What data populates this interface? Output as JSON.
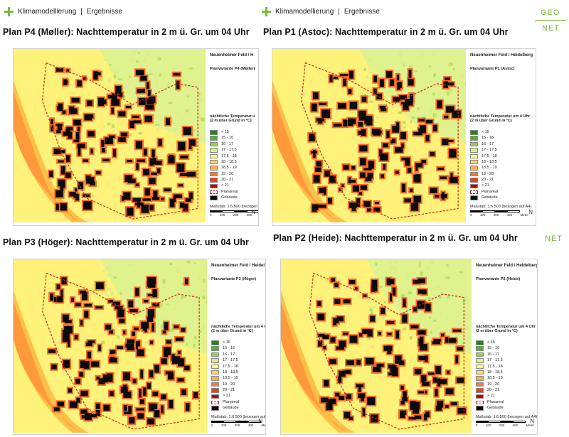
{
  "header": {
    "section": "Klimamodellierung",
    "separator": "|",
    "page": "Ergebnisse"
  },
  "logo": {
    "top": "GEO",
    "bottom": "NET",
    "fragment": "NET"
  },
  "legend_common": {
    "location": "Neuenheimer Feld / Heidelberg",
    "title": "nächtliche Temperatur um 4 Uhr",
    "subtitle": "(2 m über Grund in °C)",
    "classes": [
      "< 15",
      "15 - 16",
      "16 - 17",
      "17 - 17,5",
      "17,5 - 18",
      "18 - 18,5",
      "18,5 - 19",
      "19 - 20",
      "20 - 21",
      "> 21"
    ],
    "class_colors": [
      "#1b8a16",
      "#55b030",
      "#97d14a",
      "#d6ef8a",
      "#ffff70",
      "#ffd66a",
      "#ffb04a",
      "#ff7a30",
      "#f03c1c",
      "#c00000"
    ],
    "planareal": "Planareal",
    "gebaeude": "Gebäude",
    "scale": "Maßstab: 1:6.500",
    "scale_note": "(bezogen auf A4)",
    "scale_labels": [
      "0",
      "100",
      "200",
      "400"
    ],
    "unit": "Meter",
    "north": "N"
  },
  "panels": [
    {
      "id": "p4",
      "title": "Plan P4 (Møller): Nachttemperatur in 2 m ü. Gr. um 04 Uhr",
      "variant": "Planvariante P4 (Møller)",
      "loc_text": "Neuenheimer Feld / H",
      "title_text": "nächtliche Temperatur u"
    },
    {
      "id": "p1",
      "title": "Plan P1 (Astoc): Nachttemperatur in 2 m ü. Gr. um 04 Uhr",
      "variant": "Planvariante P1 (Astoc)",
      "loc_text": "Neuenheimer Feld / Heidelberg",
      "title_text": "nächtliche Temperatur um 4 Uhr"
    },
    {
      "id": "p3",
      "title": "Plan P3 (Höger): Nachttemperatur in 2 m ü. Gr. um 04 Uhr",
      "variant": "Planvariante P3 (Höger)",
      "loc_text": "Neuenheimer Feld / Heidel",
      "title_text": "nächtliche Temperatur um 4 U"
    },
    {
      "id": "p2",
      "title": "Plan P2 (Heide): Nachttemperatur in 2 m ü. Gr. um 04 Uhr",
      "variant": "Planvariante P2 (Heide)",
      "loc_text": "Neuenheimer Feld / Heidelberg",
      "title_text": "nächtliche Temperatur um 4 Uhr"
    }
  ]
}
